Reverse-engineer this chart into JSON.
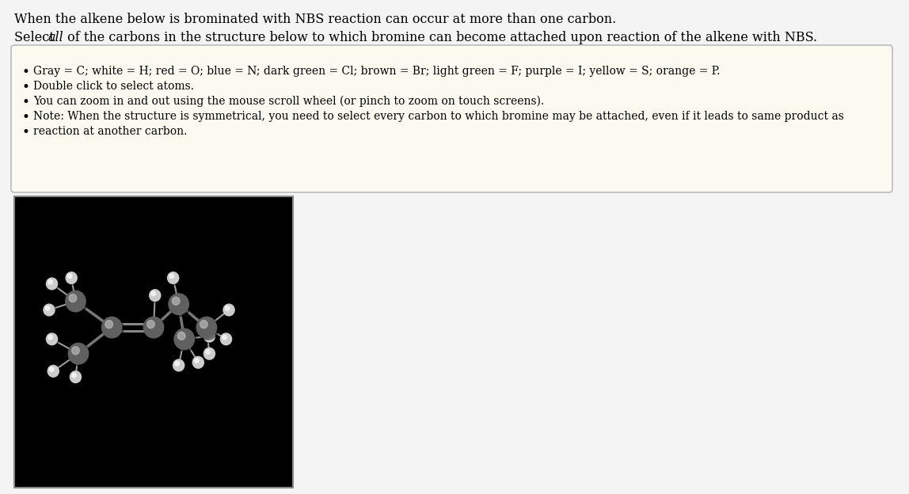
{
  "page_bg": "#f4f4f4",
  "box_bg": "#fafaf0",
  "box_border": "#cccccc",
  "title_line1": "When the alkene below is brominated with NBS reaction can occur at more than one carbon.",
  "bullet_points": [
    "Gray = C; white = H; red = O; blue = N; dark green = Cl; brown = Br; light green = F; purple = I; yellow = S; orange = P.",
    "Double click to select atoms.",
    "You can zoom in and out using the mouse scroll wheel (or pinch to zoom on touch screens).",
    "Note: When the structure is symmetrical, you need to select every carbon to which bromine may be attached, even if it leads to same product as",
    "reaction at another carbon."
  ],
  "mol_bg": "#000000",
  "font_size_title": 11.5,
  "font_size_box": 10.0
}
